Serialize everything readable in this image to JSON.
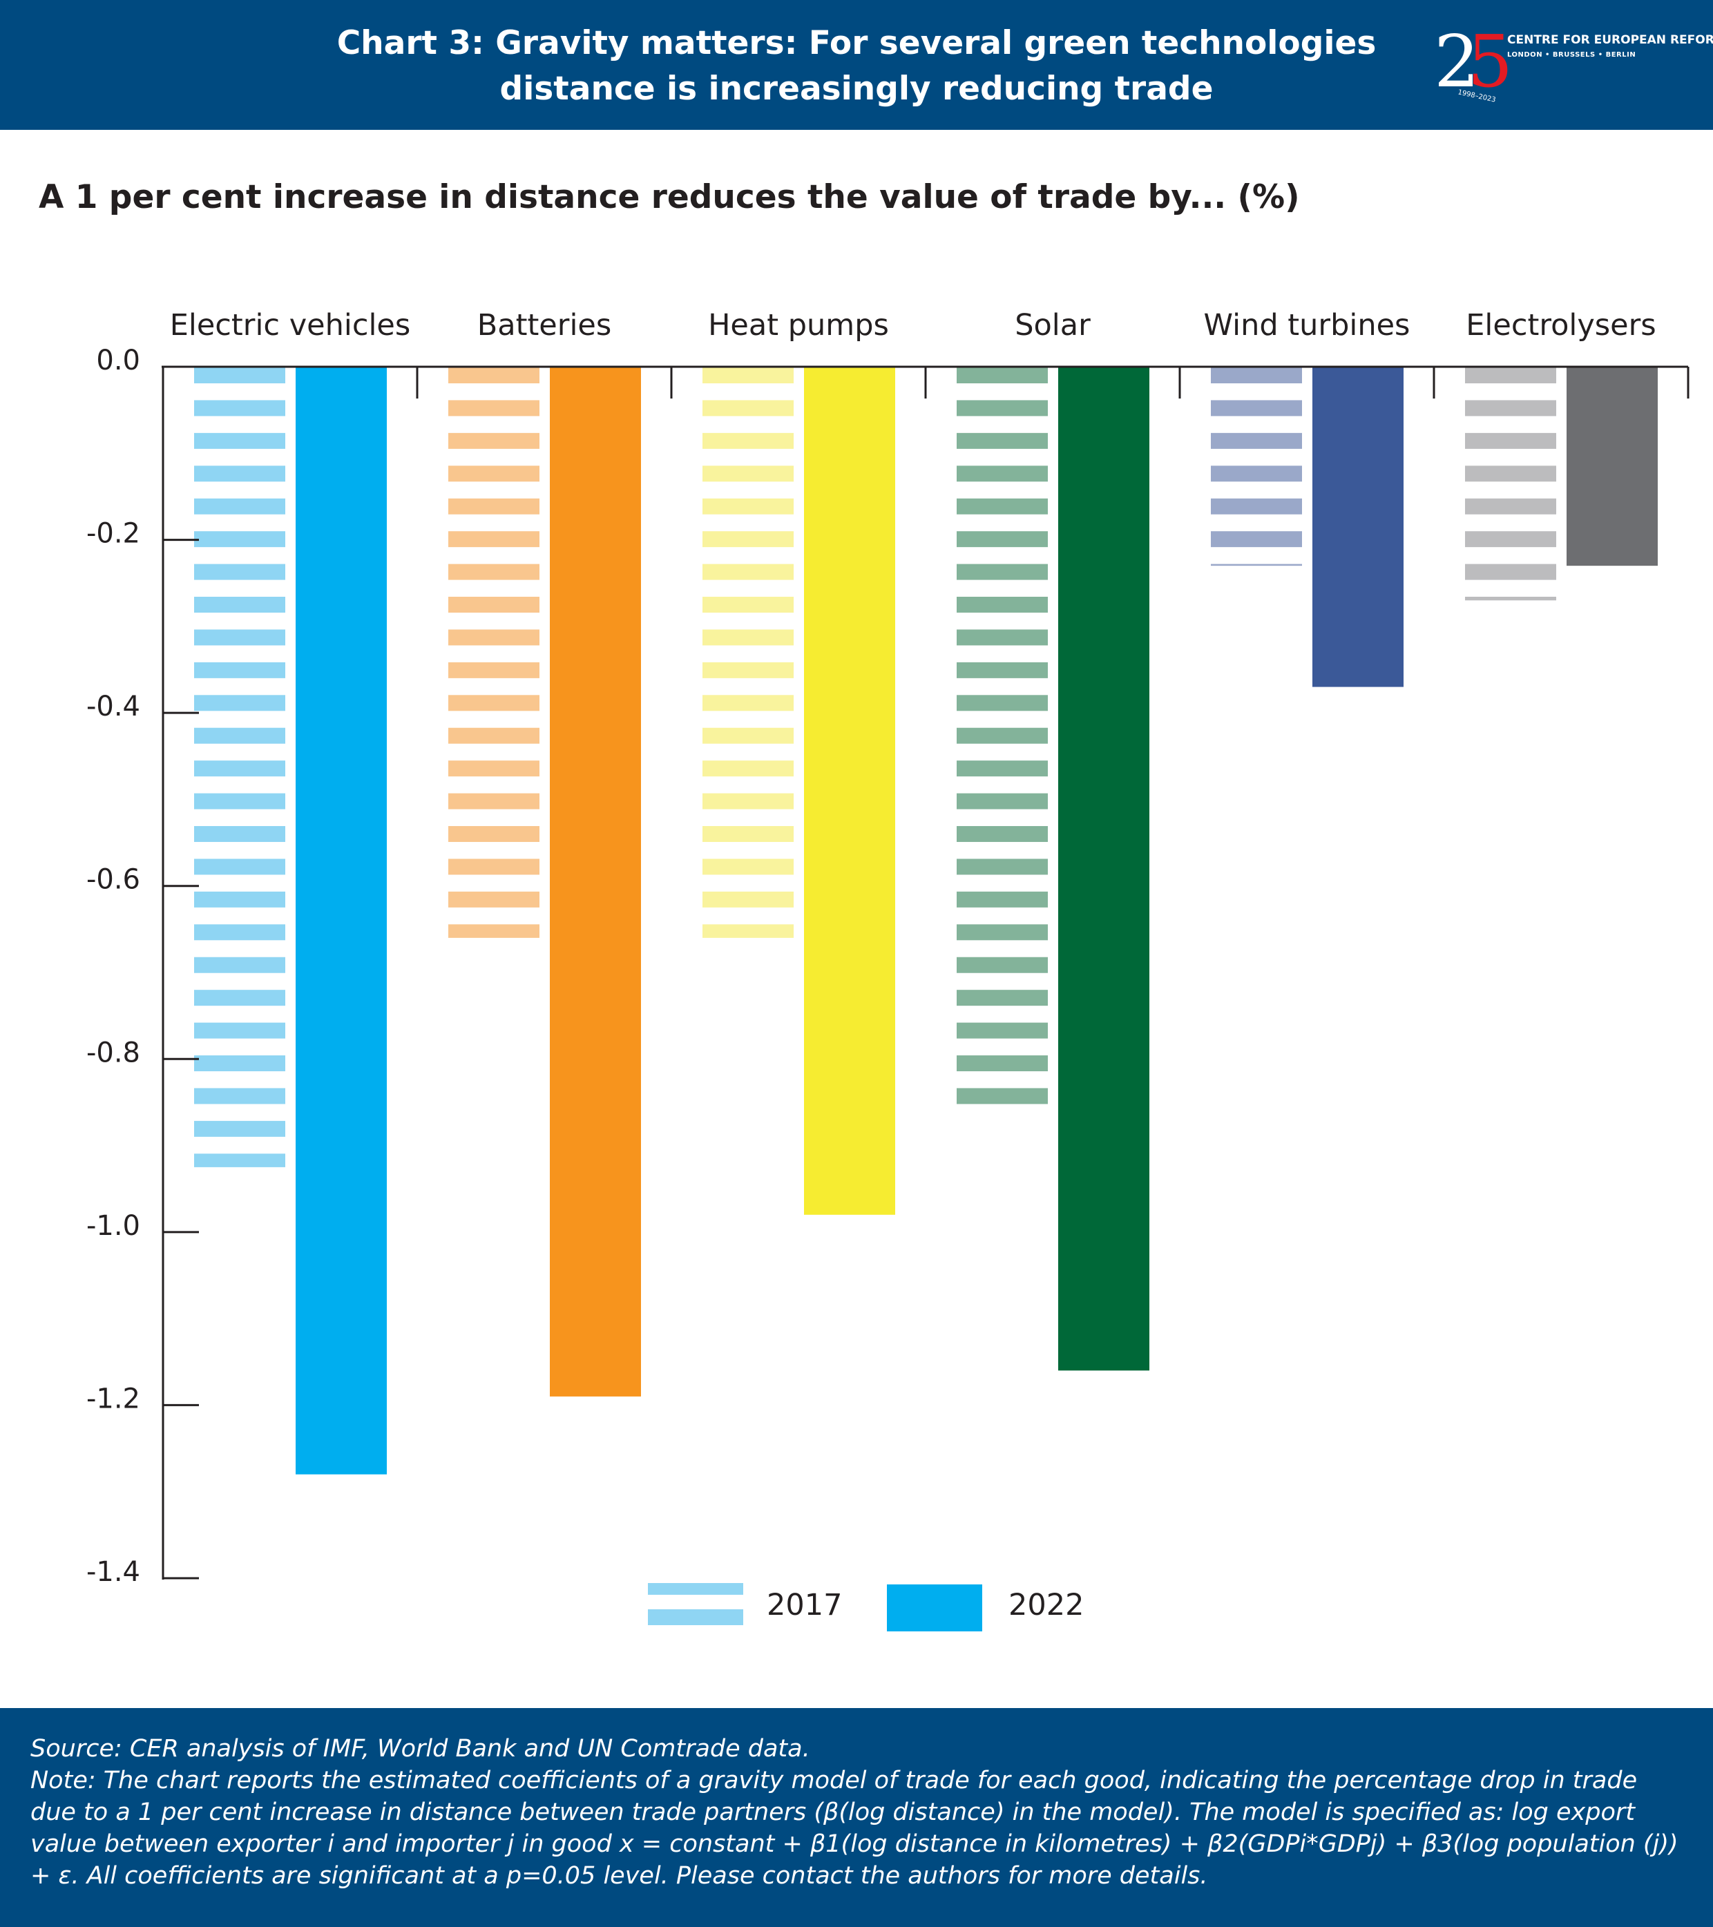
{
  "header": {
    "title_line1": "Chart 3: Gravity matters: For several green technologies",
    "title_line2": "distance is increasingly reducing trade"
  },
  "logo": {
    "number_2": "2",
    "number_5": "5",
    "name": "CENTRE FOR EUROPEAN REFORM",
    "cities": "LONDON • BRUSSELS • BERLIN",
    "years": "1998–2023"
  },
  "subtitle": "A 1 per cent increase in distance reduces the value of trade by... (%)",
  "footer": {
    "source": "Source: CER analysis of IMF, World Bank and UN Comtrade data.",
    "note": "Note: The chart reports the estimated coefficients of a gravity model of trade for each good, indicating the percentage drop in trade due to a 1 per cent increase in distance between trade partners (β(log distance) in the model). The model is specified as: log export value between exporter i and importer j in good x = constant + β1(log distance in kilometres) + β2(GDPi*GDPj) + β3(log population (j)) + ε. All coefficients are significant at a p=0.05 level. Please contact the authors for more details."
  },
  "chart_data": {
    "type": "bar",
    "categories": [
      "Electric vehicles",
      "Batteries",
      "Heat pumps",
      "Solar",
      "Wind turbines",
      "Electrolysers"
    ],
    "series": [
      {
        "name": "2017",
        "values": [
          -0.925,
          -0.66,
          -0.66,
          -0.87,
          -0.23,
          -0.27
        ],
        "pattern": "striped"
      },
      {
        "name": "2022",
        "values": [
          -1.28,
          -1.19,
          -0.98,
          -1.16,
          -0.37,
          -0.23
        ],
        "pattern": "solid"
      }
    ],
    "colors_2017": [
      "#8fd5f3",
      "#f9c68e",
      "#f9f39d",
      "#83b39a",
      "#9aa8c9",
      "#bcbcbe"
    ],
    "colors_2022": [
      "#00aeef",
      "#f7941d",
      "#f6ec31",
      "#006838",
      "#3b5998",
      "#6d6e71"
    ],
    "yticks": [
      0.0,
      -0.2,
      -0.4,
      -0.6,
      -0.8,
      -1.0,
      -1.2,
      -1.4
    ],
    "ytick_labels": [
      "0.0",
      "-0.2",
      "-0.4",
      "-0.6",
      "-0.8",
      "-1.0",
      "-1.2",
      "-1.4"
    ],
    "ylim": [
      -1.4,
      0
    ],
    "legend_labels": [
      "2017",
      "2022"
    ],
    "legend_colors": [
      "#8fd5f3",
      "#00aeef"
    ],
    "legend_position": "bottom-center",
    "xaxis_position": "top",
    "grid": false
  }
}
